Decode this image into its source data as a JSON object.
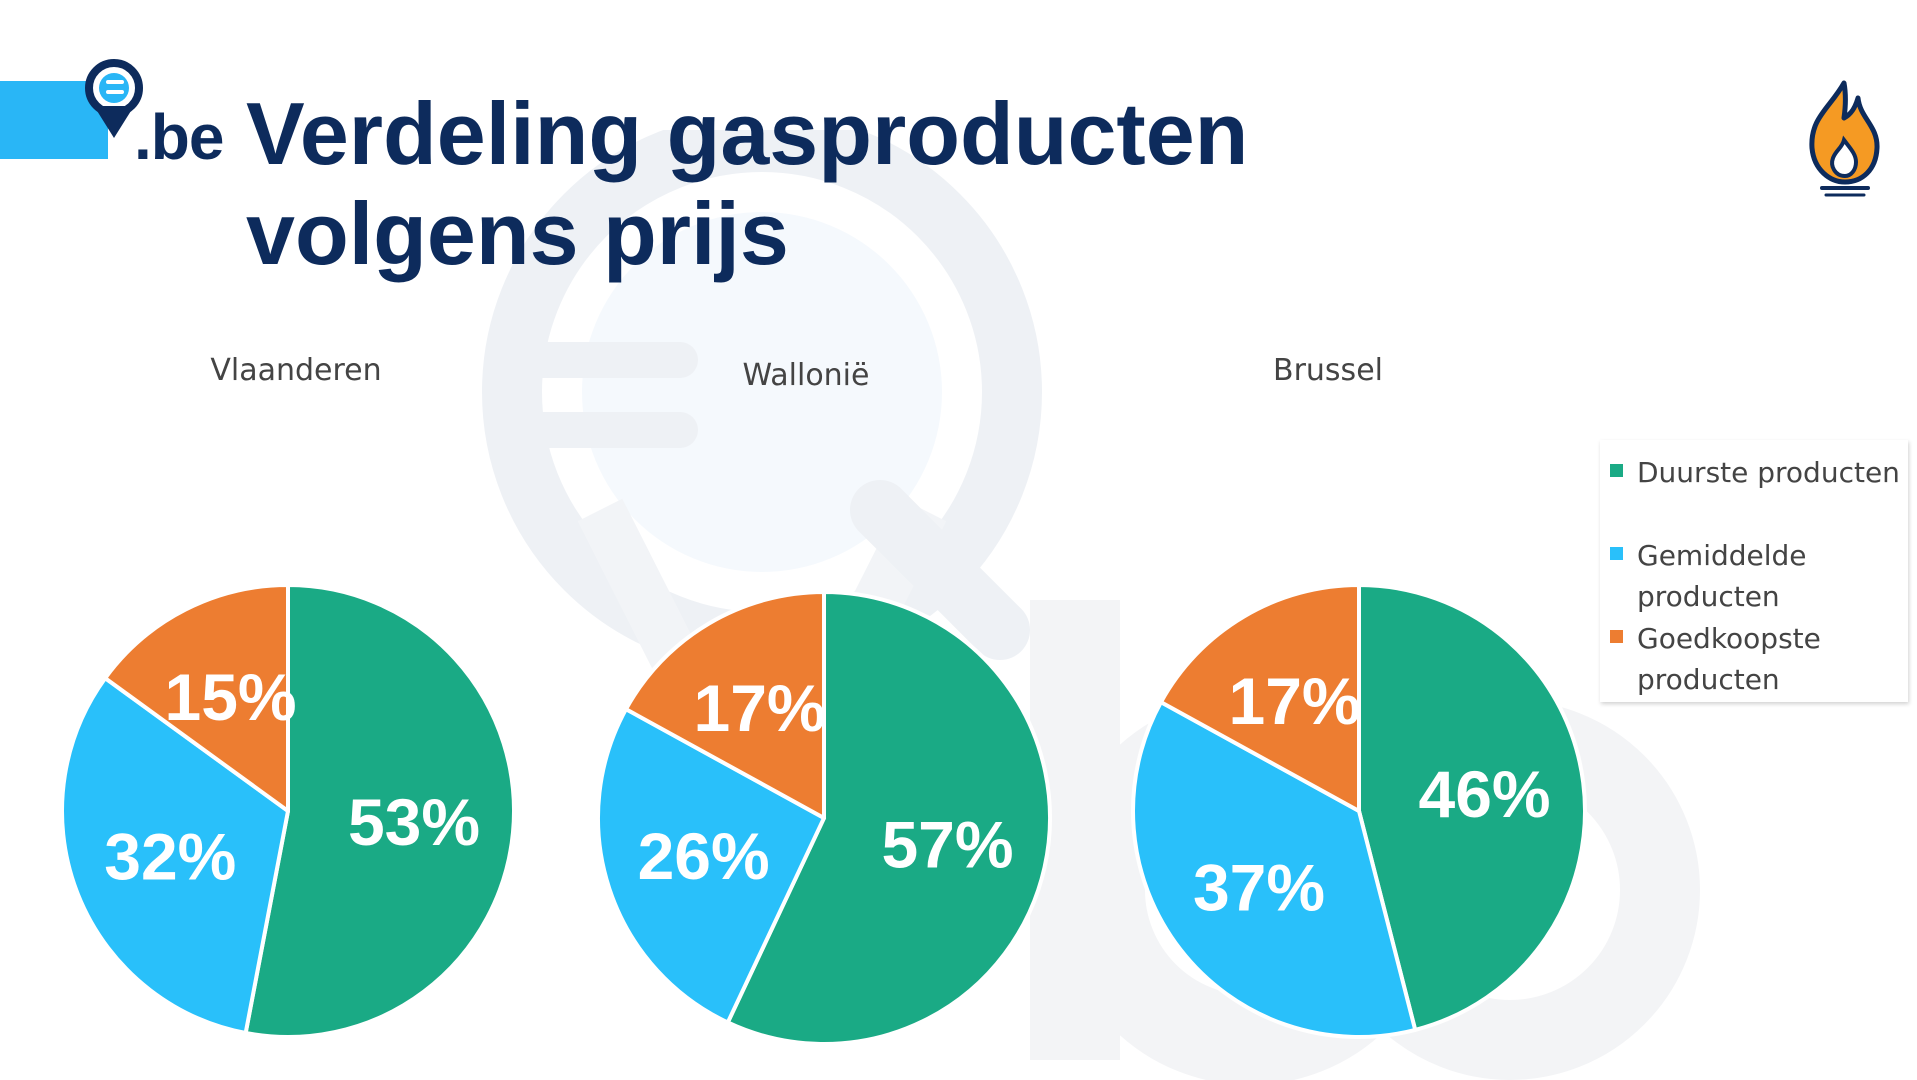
{
  "header": {
    "logo_text": ".be",
    "title_line1": "Verdeling gasproducten",
    "title_line2": "volgens prijs"
  },
  "icons": {
    "logo": "magnifier-pin-euro-icon",
    "flame": "gas-flame-icon"
  },
  "colors": {
    "Duurste producten": "#1aaa85",
    "Gemiddelde producten": "#29c0fa",
    "Goedkoopste producten": "#ed7d31",
    "title": "#0d2b5c",
    "accent": "#29b6f6"
  },
  "legend": {
    "items": [
      {
        "label": "Duurste producten"
      },
      {
        "label": "Gemiddelde producten"
      },
      {
        "label": "Goedkoopste producten"
      }
    ]
  },
  "chart_data": [
    {
      "type": "pie",
      "title": "Vlaanderen",
      "categories": [
        "Duurste producten",
        "Gemiddelde producten",
        "Goedkoopste producten"
      ],
      "values": [
        53,
        32,
        15
      ],
      "labels": [
        "53%",
        "32%",
        "15%"
      ],
      "legend": "right"
    },
    {
      "type": "pie",
      "title": "Wallonië",
      "categories": [
        "Duurste producten",
        "Gemiddelde producten",
        "Goedkoopste producten"
      ],
      "values": [
        57,
        26,
        17
      ],
      "labels": [
        "57%",
        "26%",
        "17%"
      ],
      "legend": "right"
    },
    {
      "type": "pie",
      "title": "Brussel",
      "categories": [
        "Duurste producten",
        "Gemiddelde producten",
        "Goedkoopste producten"
      ],
      "values": [
        46,
        37,
        17
      ],
      "labels": [
        "46%",
        "37%",
        "17%"
      ],
      "legend": "right"
    }
  ]
}
